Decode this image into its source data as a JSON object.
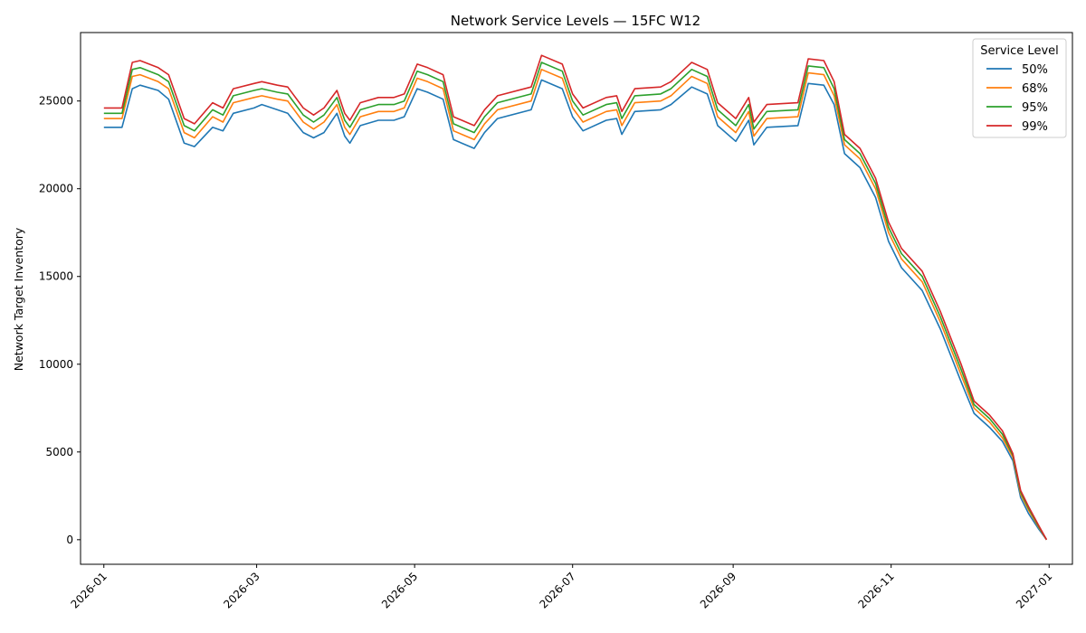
{
  "chart_data": {
    "type": "line",
    "title": "Network Service Levels — 15FC W12",
    "xlabel": "",
    "ylabel": "Network Target Inventory",
    "x_range": [
      "2025-12-23",
      "2027-01-10"
    ],
    "ylim": [
      -1400,
      28900
    ],
    "x_ticks": [
      "2026-01",
      "2026-03",
      "2026-05",
      "2026-07",
      "2026-09",
      "2026-11",
      "2027-01"
    ],
    "y_ticks": [
      0,
      5000,
      10000,
      15000,
      20000,
      25000
    ],
    "grid": false,
    "legend": {
      "title": "Service Level",
      "position": "top-right"
    },
    "x": [
      "2026-01-01",
      "2026-01-08",
      "2026-01-12",
      "2026-01-15",
      "2026-01-22",
      "2026-01-26",
      "2026-02-01",
      "2026-02-05",
      "2026-02-12",
      "2026-02-16",
      "2026-02-20",
      "2026-02-28",
      "2026-03-03",
      "2026-03-09",
      "2026-03-13",
      "2026-03-19",
      "2026-03-23",
      "2026-03-27",
      "2026-04-01",
      "2026-04-04",
      "2026-04-06",
      "2026-04-10",
      "2026-04-17",
      "2026-04-23",
      "2026-04-27",
      "2026-05-02",
      "2026-05-06",
      "2026-05-12",
      "2026-05-16",
      "2026-05-24",
      "2026-05-28",
      "2026-06-02",
      "2026-06-15",
      "2026-06-19",
      "2026-06-27",
      "2026-07-01",
      "2026-07-05",
      "2026-07-14",
      "2026-07-18",
      "2026-07-20",
      "2026-07-25",
      "2026-08-04",
      "2026-08-08",
      "2026-08-16",
      "2026-08-22",
      "2026-08-26",
      "2026-09-02",
      "2026-09-07",
      "2026-09-09",
      "2026-09-14",
      "2026-09-26",
      "2026-09-30",
      "2026-10-06",
      "2026-10-10",
      "2026-10-14",
      "2026-10-20",
      "2026-10-26",
      "2026-10-31",
      "2026-11-05",
      "2026-11-13",
      "2026-11-20",
      "2026-11-28",
      "2026-12-03",
      "2026-12-09",
      "2026-12-14",
      "2026-12-18",
      "2026-12-21",
      "2026-12-24",
      "2026-12-28",
      "2026-12-31"
    ],
    "series": [
      {
        "name": "50%",
        "color": "#1f77b4",
        "values": [
          23500,
          23500,
          25700,
          25900,
          25600,
          25100,
          22600,
          22400,
          23500,
          23300,
          24300,
          24600,
          24800,
          24500,
          24300,
          23200,
          22900,
          23200,
          24300,
          23000,
          22600,
          23600,
          23900,
          23900,
          24100,
          25700,
          25500,
          25100,
          22800,
          22300,
          23200,
          24000,
          24500,
          26200,
          25700,
          24100,
          23300,
          23900,
          24000,
          23100,
          24400,
          24500,
          24800,
          25800,
          25400,
          23600,
          22700,
          23900,
          22500,
          23500,
          23600,
          26000,
          25900,
          24800,
          22000,
          21200,
          19500,
          17000,
          15500,
          14200,
          12000,
          9000,
          7200,
          6400,
          5600,
          4500,
          2400,
          1500,
          600,
          0
        ]
      },
      {
        "name": "68%",
        "color": "#ff7f0e",
        "values": [
          24000,
          24000,
          26400,
          26500,
          26100,
          25700,
          23200,
          22900,
          24100,
          23800,
          24900,
          25200,
          25300,
          25100,
          25000,
          23800,
          23400,
          23800,
          24800,
          23500,
          23100,
          24100,
          24400,
          24400,
          24600,
          26300,
          26100,
          25700,
          23300,
          22800,
          23700,
          24500,
          25000,
          26800,
          26300,
          24600,
          23800,
          24400,
          24500,
          23600,
          24900,
          25000,
          25300,
          26400,
          26000,
          24100,
          23200,
          24400,
          23000,
          24000,
          24100,
          26600,
          26500,
          25300,
          22500,
          21700,
          20000,
          17500,
          16000,
          14700,
          12400,
          9400,
          7500,
          6700,
          5800,
          4700,
          2600,
          1700,
          700,
          0
        ]
      },
      {
        "name": "95%",
        "color": "#2ca02c",
        "values": [
          24300,
          24300,
          26800,
          26900,
          26500,
          26100,
          23600,
          23300,
          24500,
          24200,
          25300,
          25600,
          25700,
          25500,
          25400,
          24200,
          23800,
          24200,
          25200,
          23900,
          23500,
          24500,
          24800,
          24800,
          25000,
          26700,
          26500,
          26100,
          23700,
          23200,
          24100,
          24900,
          25400,
          27200,
          26700,
          25000,
          24200,
          24800,
          24900,
          24000,
          25300,
          25400,
          25700,
          26800,
          26400,
          24500,
          23600,
          24800,
          23400,
          24400,
          24500,
          27000,
          26900,
          25700,
          22800,
          22000,
          20300,
          17800,
          16300,
          15000,
          12700,
          9700,
          7700,
          6900,
          6000,
          4800,
          2700,
          1800,
          750,
          0
        ]
      },
      {
        "name": "99%",
        "color": "#d62728",
        "values": [
          24600,
          24600,
          27200,
          27300,
          26900,
          26500,
          24000,
          23700,
          24900,
          24600,
          25700,
          26000,
          26100,
          25900,
          25800,
          24600,
          24200,
          24600,
          25600,
          24300,
          23900,
          24900,
          25200,
          25200,
          25400,
          27100,
          26900,
          26500,
          24100,
          23600,
          24500,
          25300,
          25800,
          27600,
          27100,
          25400,
          24600,
          25200,
          25300,
          24400,
          25700,
          25800,
          26100,
          27200,
          26800,
          24900,
          24000,
          25200,
          23800,
          24800,
          24900,
          27400,
          27300,
          26100,
          23100,
          22300,
          20600,
          18100,
          16600,
          15300,
          13000,
          10000,
          7900,
          7100,
          6200,
          4900,
          2800,
          1900,
          800,
          0
        ]
      }
    ]
  }
}
